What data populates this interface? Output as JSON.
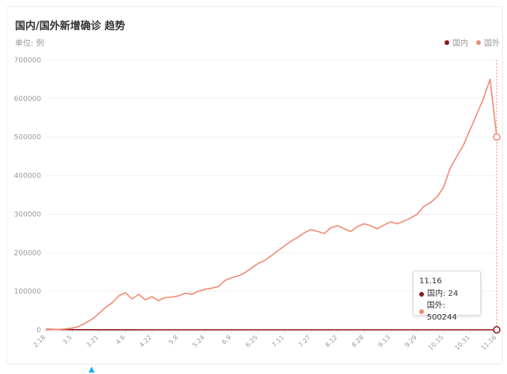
{
  "header": {
    "title": "国内/国外新增确诊 趋势",
    "unit": "单位: 例"
  },
  "legend": [
    {
      "label": "国内",
      "color": "#8b1a1a"
    },
    {
      "label": "国外",
      "color": "#f28b74"
    }
  ],
  "tooltip": {
    "date": "11.16",
    "rows": [
      {
        "label": "国内: 24",
        "color": "#8b1a1a"
      },
      {
        "label": "国外: 500244",
        "color": "#f28b74"
      }
    ]
  },
  "chart_data": {
    "type": "line",
    "title": "国内/国外新增确诊 趋势",
    "ylabel": "单位: 例",
    "ylim": [
      0,
      700000
    ],
    "yticks": [
      "700000",
      "600000",
      "500000",
      "400000",
      "300000",
      "200000",
      "100000",
      "0"
    ],
    "x_ticks": [
      "2.18",
      "3.5",
      "3.21",
      "4.6",
      "4.22",
      "5.8",
      "5.24",
      "6.9",
      "6.25",
      "7.11",
      "7.27",
      "8.12",
      "8.28",
      "9.13",
      "9.29",
      "10.15",
      "10.31",
      "11.16"
    ],
    "series": [
      {
        "name": "国内",
        "color": "#8b1a1a",
        "x": [
          "2.18",
          "3.5",
          "3.21",
          "4.6",
          "4.22",
          "5.8",
          "5.24",
          "6.9",
          "6.25",
          "7.11",
          "7.27",
          "8.12",
          "8.28",
          "9.13",
          "9.29",
          "10.15",
          "10.31",
          "11.16"
        ],
        "values": [
          1200,
          500,
          150,
          120,
          60,
          20,
          10,
          30,
          15,
          40,
          70,
          30,
          20,
          25,
          30,
          25,
          30,
          24
        ]
      },
      {
        "name": "国外",
        "color": "#f28b74",
        "x": [
          "2.18",
          "2.22",
          "2.26",
          "3.1",
          "3.5",
          "3.9",
          "3.13",
          "3.17",
          "3.21",
          "3.25",
          "3.29",
          "4.2",
          "4.6",
          "4.10",
          "4.14",
          "4.18",
          "4.22",
          "4.26",
          "4.30",
          "5.4",
          "5.8",
          "5.12",
          "5.16",
          "5.20",
          "5.24",
          "5.28",
          "6.1",
          "6.5",
          "6.9",
          "6.13",
          "6.17",
          "6.21",
          "6.25",
          "6.29",
          "7.3",
          "7.7",
          "7.11",
          "7.15",
          "7.19",
          "7.23",
          "7.27",
          "7.31",
          "8.4",
          "8.8",
          "8.12",
          "8.16",
          "8.20",
          "8.24",
          "8.28",
          "9.1",
          "9.5",
          "9.9",
          "9.13",
          "9.17",
          "9.21",
          "9.25",
          "9.29",
          "10.3",
          "10.7",
          "10.11",
          "10.15",
          "10.19",
          "10.23",
          "10.27",
          "10.31",
          "11.4",
          "11.8",
          "11.12",
          "11.16"
        ],
        "values": [
          300,
          500,
          1200,
          2500,
          4500,
          9000,
          18000,
          28000,
          42000,
          58000,
          70000,
          88000,
          96000,
          80000,
          92000,
          78000,
          86000,
          76000,
          84000,
          85000,
          88000,
          95000,
          92000,
          100000,
          105000,
          108000,
          112000,
          128000,
          135000,
          140000,
          148000,
          160000,
          172000,
          180000,
          192000,
          205000,
          218000,
          230000,
          240000,
          252000,
          260000,
          255000,
          250000,
          265000,
          270000,
          262000,
          255000,
          268000,
          275000,
          270000,
          262000,
          272000,
          280000,
          275000,
          282000,
          290000,
          300000,
          320000,
          330000,
          345000,
          370000,
          420000,
          450000,
          480000,
          520000,
          560000,
          600000,
          650000,
          500244
        ]
      }
    ]
  }
}
